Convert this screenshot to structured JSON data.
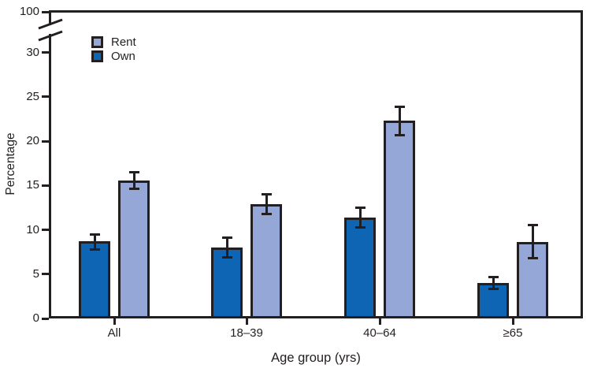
{
  "figure": {
    "background": "#ffffff",
    "ink_color": "#231f20"
  },
  "chart_data": {
    "type": "bar",
    "title": "",
    "xlabel": "Age group (yrs)",
    "ylabel": "Percentage",
    "categories": [
      "All",
      "18–39",
      "40–64",
      "≥65"
    ],
    "bar_order_left_to_right": [
      "Own",
      "Rent"
    ],
    "series": [
      {
        "name": "Rent",
        "color": "#94a7d7",
        "values": [
          15.6,
          12.9,
          22.3,
          8.6
        ],
        "ci_low": [
          14.6,
          11.8,
          20.7,
          6.8
        ],
        "ci_high": [
          16.5,
          14.0,
          23.9,
          10.5
        ]
      },
      {
        "name": "Own",
        "color": "#0d65b3",
        "values": [
          8.7,
          8.0,
          11.4,
          4.0
        ],
        "ci_low": [
          7.8,
          6.9,
          10.3,
          3.3
        ],
        "ci_high": [
          9.5,
          9.1,
          12.5,
          4.7
        ]
      }
    ],
    "error_bars": true,
    "y_axis": {
      "ticks": [
        0,
        5,
        10,
        15,
        20,
        25,
        30
      ],
      "axis_break": true,
      "break_upper_label": "100"
    },
    "legend_position": "top-left",
    "grid": false
  }
}
